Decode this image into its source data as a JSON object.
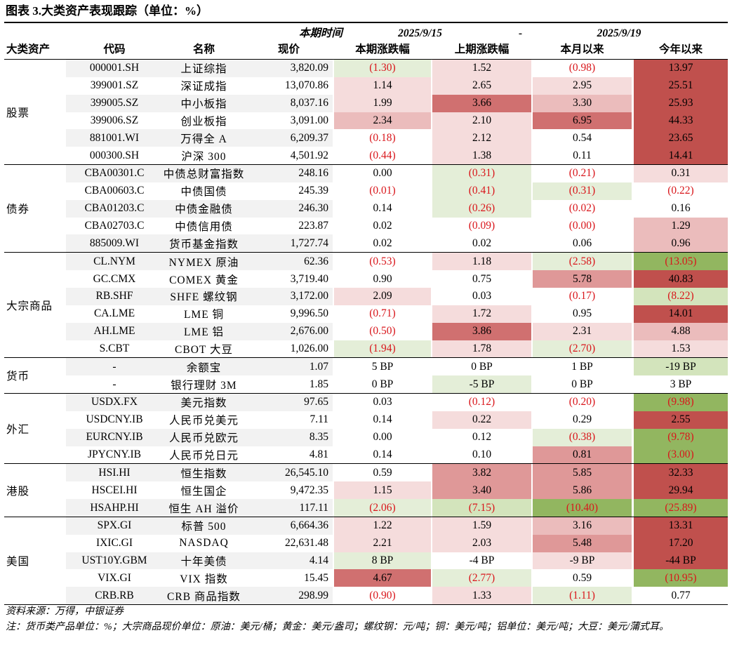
{
  "title": "图表 3.大类资产表现跟踪（单位：%）",
  "header": {
    "row1": [
      "",
      "",
      "",
      "",
      "本期时间",
      "2025/9/15",
      "-",
      "2025/9/19"
    ],
    "row2": [
      "大类资产",
      "代码",
      "名称",
      "现价",
      "本期涨跌幅",
      "上期涨跌幅",
      "本月以来",
      "今年以来"
    ]
  },
  "groups": [
    {
      "label": "股票",
      "rows": [
        {
          "code": "000001.SH",
          "name": "上证综指",
          "price": "3,820.09",
          "v1": "(1.30)",
          "v2": "1.52",
          "v3": "(0.98)",
          "v4": "13.97",
          "bg0": "grey",
          "bg1": "lg",
          "bg2": "lp",
          "bg3": "",
          "bg4": "r"
        },
        {
          "code": "399001.SZ",
          "name": "深证成指",
          "price": "13,070.86",
          "v1": "1.14",
          "v2": "2.65",
          "v3": "2.95",
          "v4": "25.51",
          "bg0": "",
          "bg1": "lp",
          "bg2": "lp",
          "bg3": "lp",
          "bg4": "r"
        },
        {
          "code": "399005.SZ",
          "name": "中小板指",
          "price": "8,037.16",
          "v1": "1.99",
          "v2": "3.66",
          "v3": "3.30",
          "v4": "25.93",
          "bg0": "grey",
          "bg1": "lp",
          "bg2": "dp",
          "bg3": "p",
          "bg4": "r"
        },
        {
          "code": "399006.SZ",
          "name": "创业板指",
          "price": "3,091.00",
          "v1": "2.34",
          "v2": "2.10",
          "v3": "6.95",
          "v4": "44.33",
          "bg0": "",
          "bg1": "p",
          "bg2": "lp",
          "bg3": "dp",
          "bg4": "r"
        },
        {
          "code": "881001.WI",
          "name": "万得全 A",
          "price": "6,209.37",
          "v1": "(0.18)",
          "v2": "2.12",
          "v3": "0.54",
          "v4": "23.65",
          "bg0": "grey",
          "bg1": "",
          "bg2": "lp",
          "bg3": "",
          "bg4": "r"
        },
        {
          "code": "000300.SH",
          "name": "沪深 300",
          "price": "4,501.92",
          "v1": "(0.44)",
          "v2": "1.38",
          "v3": "0.11",
          "v4": "14.41",
          "bg0": "",
          "bg1": "",
          "bg2": "lp",
          "bg3": "",
          "bg4": "r"
        }
      ]
    },
    {
      "label": "债券",
      "rows": [
        {
          "code": "CBA00301.C",
          "name": "中债总财富指数",
          "price": "248.16",
          "v1": "0.00",
          "v2": "(0.31)",
          "v3": "(0.21)",
          "v4": "0.31",
          "bg0": "grey",
          "bg1": "",
          "bg2": "lg",
          "bg3": "",
          "bg4": "lp"
        },
        {
          "code": "CBA00603.C",
          "name": "中债国债",
          "price": "245.39",
          "v1": "(0.01)",
          "v2": "(0.41)",
          "v3": "(0.31)",
          "v4": "(0.22)",
          "bg0": "",
          "bg1": "",
          "bg2": "lg",
          "bg3": "lg",
          "bg4": ""
        },
        {
          "code": "CBA01203.C",
          "name": "中债金融债",
          "price": "246.30",
          "v1": "0.14",
          "v2": "(0.26)",
          "v3": "(0.02)",
          "v4": "0.16",
          "bg0": "grey",
          "bg1": "",
          "bg2": "lg",
          "bg3": "",
          "bg4": ""
        },
        {
          "code": "CBA02703.C",
          "name": "中债信用债",
          "price": "223.87",
          "v1": "0.02",
          "v2": "(0.09)",
          "v3": "(0.00)",
          "v4": "1.29",
          "bg0": "",
          "bg1": "",
          "bg2": "",
          "bg3": "",
          "bg4": "p"
        },
        {
          "code": "885009.WI",
          "name": "货币基金指数",
          "price": "1,727.74",
          "v1": "0.02",
          "v2": "0.02",
          "v3": "0.06",
          "v4": "0.96",
          "bg0": "grey",
          "bg1": "",
          "bg2": "",
          "bg3": "",
          "bg4": "p"
        }
      ]
    },
    {
      "label": "大宗商品",
      "rows": [
        {
          "code": "CL.NYM",
          "name": "NYMEX 原油",
          "price": "62.36",
          "v1": "(0.53)",
          "v2": "1.18",
          "v3": "(2.58)",
          "v4": "(13.05)",
          "bg0": "grey",
          "bg1": "",
          "bg2": "lp",
          "bg3": "lg",
          "bg4": "dg"
        },
        {
          "code": "GC.CMX",
          "name": "COMEX 黄金",
          "price": "3,719.40",
          "v1": "0.90",
          "v2": "0.75",
          "v3": "5.78",
          "v4": "40.83",
          "bg0": "",
          "bg1": "",
          "bg2": "",
          "bg3": "mp",
          "bg4": "r"
        },
        {
          "code": "RB.SHF",
          "name": "SHFE 螺纹钢",
          "price": "3,172.00",
          "v1": "2.09",
          "v2": "0.03",
          "v3": "(0.17)",
          "v4": "(8.22)",
          "bg0": "grey",
          "bg1": "lp",
          "bg2": "",
          "bg3": "",
          "bg4": "g"
        },
        {
          "code": "CA.LME",
          "name": "LME 铜",
          "price": "9,996.50",
          "v1": "(0.71)",
          "v2": "1.72",
          "v3": "0.95",
          "v4": "14.01",
          "bg0": "",
          "bg1": "",
          "bg2": "lp",
          "bg3": "",
          "bg4": "r"
        },
        {
          "code": "AH.LME",
          "name": "LME 铝",
          "price": "2,676.00",
          "v1": "(0.50)",
          "v2": "3.86",
          "v3": "2.31",
          "v4": "4.88",
          "bg0": "grey",
          "bg1": "",
          "bg2": "dp",
          "bg3": "lp",
          "bg4": "p"
        },
        {
          "code": "S.CBT",
          "name": "CBOT 大豆",
          "price": "1,026.00",
          "v1": "(1.94)",
          "v2": "1.78",
          "v3": "(2.70)",
          "v4": "1.53",
          "bg0": "",
          "bg1": "lg",
          "bg2": "lp",
          "bg3": "lg",
          "bg4": "lp"
        }
      ]
    },
    {
      "label": "货币",
      "rows": [
        {
          "code": "-",
          "name": "余额宝",
          "price": "1.07",
          "v1": "5 BP",
          "v2": "0 BP",
          "v3": "1 BP",
          "v4": "-19 BP",
          "bg0": "grey",
          "bg1": "",
          "bg2": "",
          "bg3": "",
          "bg4": "g"
        },
        {
          "code": "-",
          "name": "银行理财 3M",
          "price": "1.85",
          "v1": "0 BP",
          "v2": "-5 BP",
          "v3": "0 BP",
          "v4": "3 BP",
          "bg0": "",
          "bg1": "",
          "bg2": "lg",
          "bg3": "",
          "bg4": ""
        }
      ]
    },
    {
      "label": "外汇",
      "rows": [
        {
          "code": "USDX.FX",
          "name": "美元指数",
          "price": "97.65",
          "v1": "0.03",
          "v2": "(0.12)",
          "v3": "(0.20)",
          "v4": "(9.98)",
          "bg0": "grey",
          "bg1": "",
          "bg2": "",
          "bg3": "",
          "bg4": "dg"
        },
        {
          "code": "USDCNY.IB",
          "name": "人民币兑美元",
          "price": "7.11",
          "v1": "0.14",
          "v2": "0.22",
          "v3": "0.29",
          "v4": "2.55",
          "bg0": "",
          "bg1": "",
          "bg2": "lp",
          "bg3": "",
          "bg4": "r"
        },
        {
          "code": "EURCNY.IB",
          "name": "人民币兑欧元",
          "price": "8.35",
          "v1": "0.00",
          "v2": "0.12",
          "v3": "(0.38)",
          "v4": "(9.78)",
          "bg0": "grey",
          "bg1": "",
          "bg2": "",
          "bg3": "lg",
          "bg4": "dg"
        },
        {
          "code": "JPYCNY.IB",
          "name": "人民币兑日元",
          "price": "4.81",
          "v1": "0.14",
          "v2": "0.10",
          "v3": "0.81",
          "v4": "(3.00)",
          "bg0": "",
          "bg1": "",
          "bg2": "",
          "bg3": "mp",
          "bg4": "dg"
        }
      ]
    },
    {
      "label": "港股",
      "rows": [
        {
          "code": "HSI.HI",
          "name": "恒生指数",
          "price": "26,545.10",
          "v1": "0.59",
          "v2": "3.82",
          "v3": "5.85",
          "v4": "32.33",
          "bg0": "grey",
          "bg1": "",
          "bg2": "mp",
          "bg3": "mp",
          "bg4": "r"
        },
        {
          "code": "HSCEI.HI",
          "name": "恒生国企",
          "price": "9,472.35",
          "v1": "1.15",
          "v2": "3.40",
          "v3": "5.86",
          "v4": "29.94",
          "bg0": "",
          "bg1": "lp",
          "bg2": "mp",
          "bg3": "mp",
          "bg4": "r"
        },
        {
          "code": "HSAHP.HI",
          "name": "恒生 AH 溢价",
          "price": "117.11",
          "v1": "(2.06)",
          "v2": "(7.15)",
          "v3": "(10.40)",
          "v4": "(25.89)",
          "bg0": "grey",
          "bg1": "lg",
          "bg2": "g",
          "bg3": "dg",
          "bg4": "dg"
        }
      ]
    },
    {
      "label": "美国",
      "rows": [
        {
          "code": "SPX.GI",
          "name": "标普 500",
          "price": "6,664.36",
          "v1": "1.22",
          "v2": "1.59",
          "v3": "3.16",
          "v4": "13.31",
          "bg0": "grey",
          "bg1": "lp",
          "bg2": "lp",
          "bg3": "p",
          "bg4": "r"
        },
        {
          "code": "IXIC.GI",
          "name": "NASDAQ",
          "price": "22,631.48",
          "v1": "2.21",
          "v2": "2.03",
          "v3": "5.48",
          "v4": "17.20",
          "bg0": "",
          "bg1": "lp",
          "bg2": "lp",
          "bg3": "mp",
          "bg4": "r"
        },
        {
          "code": "UST10Y.GBM",
          "name": "十年美债",
          "price": "4.14",
          "v1": "8 BP",
          "v2": "-4 BP",
          "v3": "-9 BP",
          "v4": "-44 BP",
          "bg0": "grey",
          "bg1": "lg",
          "bg2": "",
          "bg3": "lp",
          "bg4": "r"
        },
        {
          "code": "VIX.GI",
          "name": "VIX 指数",
          "price": "15.45",
          "v1": "4.67",
          "v2": "(2.77)",
          "v3": "0.59",
          "v4": "(10.95)",
          "bg0": "",
          "bg1": "dp",
          "bg2": "lg",
          "bg3": "",
          "bg4": "dg"
        },
        {
          "code": "CRB.RB",
          "name": "CRB 商品指数",
          "price": "298.99",
          "v1": "(0.90)",
          "v2": "1.33",
          "v3": "(1.11)",
          "v4": "0.77",
          "bg0": "grey",
          "bg1": "",
          "bg2": "lp",
          "bg3": "lg",
          "bg4": ""
        }
      ]
    }
  ],
  "source": "资料来源：万得，中银证券",
  "note": "注：货币类产品单位：%；大宗商品现价单位：原油：美元/桶；黄金：美元/盎司；螺纹钢：元/吨；铜：美元/吨；铝单位：美元/吨；大豆：美元/蒲式耳。"
}
